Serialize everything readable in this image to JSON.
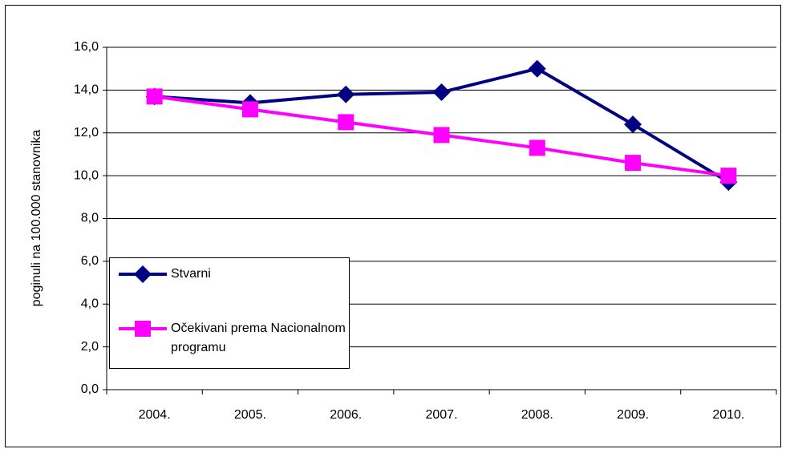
{
  "chart_data": {
    "type": "line",
    "y_label": "poginuli na 100.000 stanovnika",
    "categories": [
      "2004.",
      "2005.",
      "2006.",
      "2007.",
      "2008.",
      "2009.",
      "2010."
    ],
    "series": [
      {
        "name": "Stvarni",
        "color": "#000080",
        "marker": "diamond",
        "values": [
          13.7,
          13.4,
          13.8,
          13.9,
          15.0,
          12.4,
          9.7
        ]
      },
      {
        "name": "Očekivani prema Nacionalnom programu",
        "color": "#ff00ff",
        "marker": "square",
        "values": [
          13.7,
          13.1,
          12.5,
          11.9,
          11.3,
          10.6,
          10.0
        ]
      }
    ],
    "ylim": [
      0,
      16
    ],
    "yticks": [
      {
        "value": 0,
        "label": "0,0"
      },
      {
        "value": 2,
        "label": "2,0"
      },
      {
        "value": 4,
        "label": "4,0"
      },
      {
        "value": 6,
        "label": "6,0"
      },
      {
        "value": 8,
        "label": "8,0"
      },
      {
        "value": 10,
        "label": "10,0"
      },
      {
        "value": 12,
        "label": "12,0"
      },
      {
        "value": 14,
        "label": "14,0"
      },
      {
        "value": 16,
        "label": "16,0"
      }
    ],
    "grid": true,
    "legend": "lower left"
  }
}
